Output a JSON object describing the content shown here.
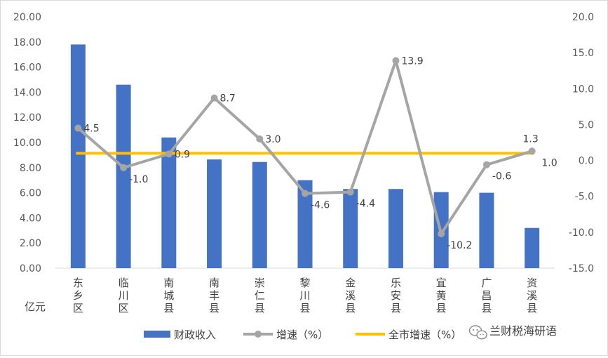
{
  "chart_data": {
    "type": "bar+line",
    "y_left_unit": "亿元",
    "y_left_ticks": [
      "0.00",
      "2.00",
      "4.00",
      "6.00",
      "8.00",
      "10.00",
      "12.00",
      "14.00",
      "16.00",
      "18.00",
      "20.00"
    ],
    "y_right_ticks": [
      "-15.0",
      "-10.0",
      "-5.0",
      "0.0",
      "5.0",
      "10.0",
      "15.0",
      "20.0"
    ],
    "ylim_left": [
      0,
      20
    ],
    "ylim_right": [
      -15,
      20
    ],
    "categories": [
      "东乡区",
      "临川区",
      "南城县",
      "南丰县",
      "崇仁县",
      "黎川县",
      "金溪县",
      "乐安县",
      "宜黄县",
      "广昌县",
      "资溪县"
    ],
    "series": [
      {
        "name": "财政收入",
        "type": "bar",
        "axis": "left",
        "color": "#4472c4",
        "values": [
          17.8,
          14.6,
          10.4,
          8.65,
          8.45,
          7.0,
          6.3,
          6.3,
          6.05,
          6.0,
          3.2
        ]
      },
      {
        "name": "增速（%）",
        "type": "line",
        "axis": "right",
        "color": "#a5a5a5",
        "values": [
          4.5,
          -1.0,
          0.9,
          8.7,
          3.0,
          -4.6,
          -4.4,
          13.9,
          -10.2,
          -0.6,
          1.3
        ],
        "labels": [
          "4.5",
          "-1.0",
          "0.9",
          "8.7",
          "3.0",
          "-4.6",
          "-4.4",
          "13.9",
          "-10.2",
          "-0.6",
          "1.3"
        ]
      },
      {
        "name": "全市增速（%）",
        "type": "line",
        "axis": "right",
        "color": "#ffc000",
        "value": 1.0,
        "label": "1.0",
        "label_color": "#c00000"
      }
    ],
    "legend": "bottom"
  },
  "watermark": "兰财税海研语"
}
